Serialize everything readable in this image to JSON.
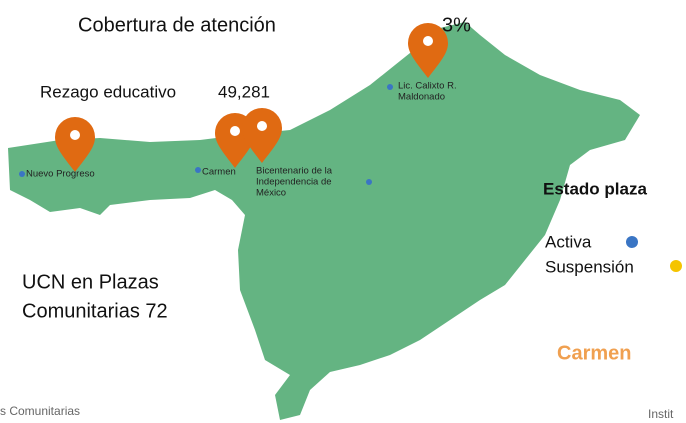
{
  "header": {
    "coverage_label": "Cobertura de atención",
    "coverage_value": "3%",
    "lag_label": "Rezago educativo",
    "lag_value": "49,281"
  },
  "places": [
    {
      "label_lines": [
        "Nuevo Progreso"
      ]
    },
    {
      "label_lines": [
        "Carmen"
      ]
    },
    {
      "label_lines": [
        "Bicentenario de la",
        "Independencia de",
        "México"
      ]
    },
    {
      "label_lines": [
        "Lic. Calixto R.",
        "Maldonado"
      ]
    }
  ],
  "legend": {
    "title": "Estado plaza",
    "items": [
      {
        "label": "Activa",
        "color": "#3a75c4"
      },
      {
        "label": "Suspensión",
        "color": "#f5c400"
      }
    ]
  },
  "ucn": {
    "lines": [
      "UCN en Plazas",
      "Comunitarias 72"
    ]
  },
  "municipality": "Carmen",
  "footer": {
    "left": "s Comunitarias",
    "right": "Instit"
  }
}
